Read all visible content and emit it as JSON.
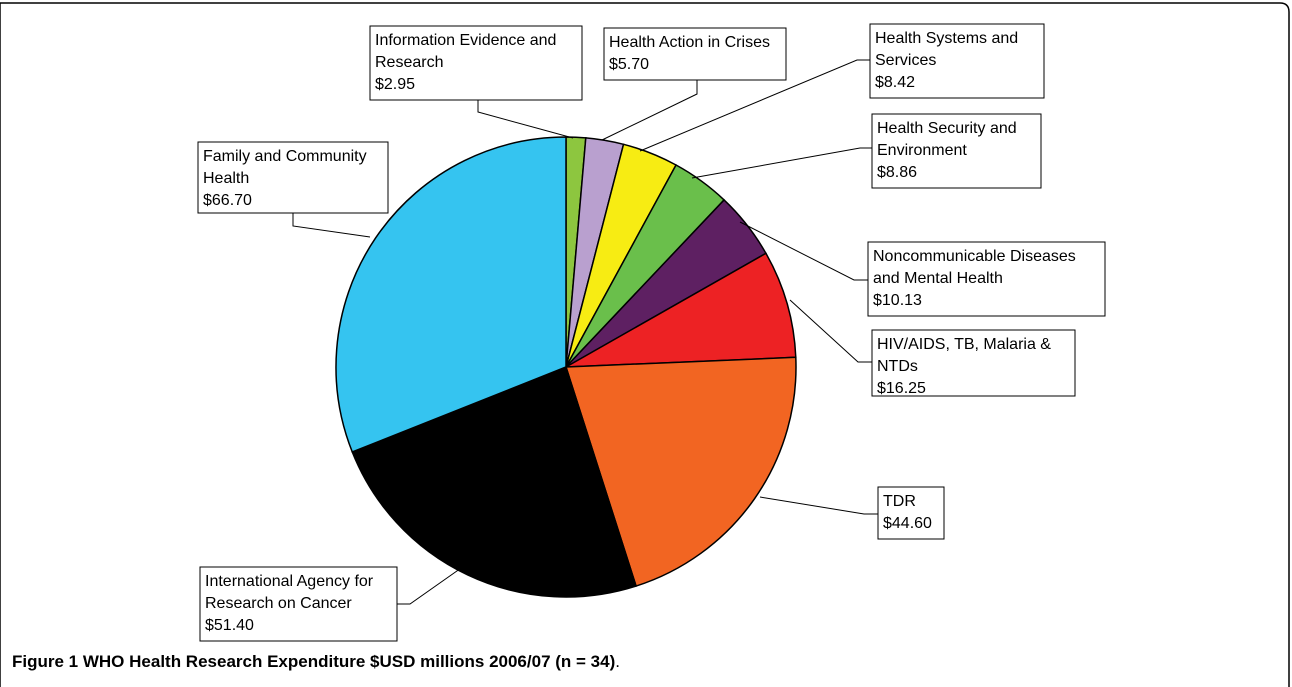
{
  "chart_data": {
    "type": "pie",
    "title": "",
    "slices": [
      {
        "label_lines": [
          "Information Evidence and",
          "Research"
        ],
        "value": 2.95,
        "value_label": "$2.95",
        "color": "#8dc63f"
      },
      {
        "label_lines": [
          "Health Action in Crises"
        ],
        "value": 5.7,
        "value_label": "$5.70",
        "color": "#b9a0cf"
      },
      {
        "label_lines": [
          "Health Systems and",
          "Services"
        ],
        "value": 8.42,
        "value_label": "$8.42",
        "color": "#f7ec13"
      },
      {
        "label_lines": [
          "Health Security and",
          "Environment"
        ],
        "value": 8.86,
        "value_label": "$8.86",
        "color": "#6abf4b"
      },
      {
        "label_lines": [
          "Noncommunicable Diseases",
          "and Mental Health"
        ],
        "value": 10.13,
        "value_label": "$10.13",
        "color": "#5e2062"
      },
      {
        "label_lines": [
          "HIV/AIDS, TB, Malaria &",
          "NTDs"
        ],
        "value": 16.25,
        "value_label": "$16.25",
        "color": "#ed2224"
      },
      {
        "label_lines": [
          "TDR"
        ],
        "value": 44.6,
        "value_label": "$44.60",
        "color": "#f26522"
      },
      {
        "label_lines": [
          "International Agency for",
          "Research on Cancer"
        ],
        "value": 51.4,
        "value_label": "$51.40",
        "color": "#000000"
      },
      {
        "label_lines": [
          "Family and Community",
          "Health"
        ],
        "value": 66.7,
        "value_label": "$66.70",
        "color": "#35c4f0"
      }
    ]
  },
  "caption": {
    "figure_label": "Figure 1",
    "title": "WHO Health Research Expenditure $USD millions 2006/07 (n = 34)",
    "end": "."
  }
}
